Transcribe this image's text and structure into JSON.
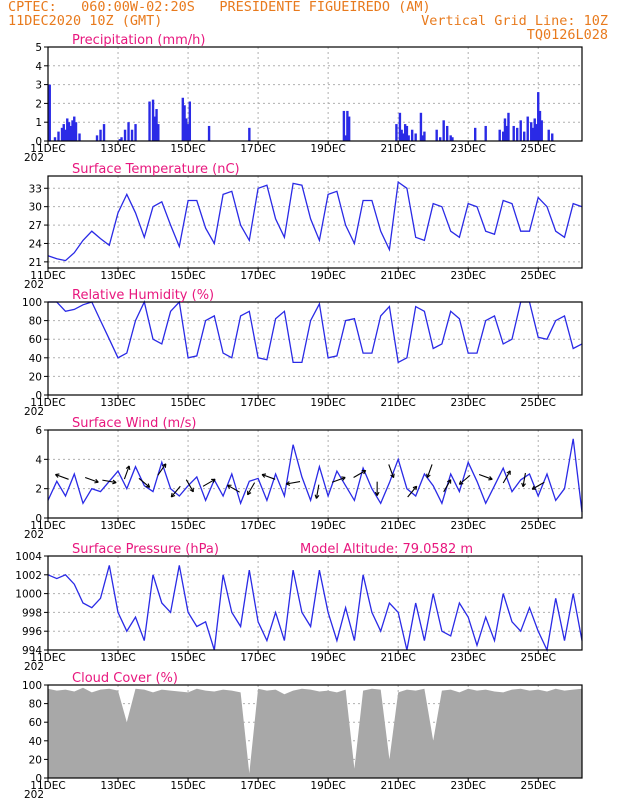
{
  "header": {
    "line1": "CPTEC:   060:00W-02:20S   PRESIDENTE FIGUEIREDO (AM)",
    "line2_left": "11DEC2020 10Z (GMT)",
    "line2_right": "Vertical Grid Line: 10Z",
    "line3_right": "TQ0126L028"
  },
  "colors": {
    "header": "#e87a1d",
    "title": "#e8177e",
    "series": "#2a2ae6",
    "cloud": "#a8a8a8",
    "grid": "#b0b0b0"
  },
  "x_axis": {
    "ticks": [
      "11DEC",
      "13DEC",
      "15DEC",
      "17DEC",
      "19DEC",
      "21DEC",
      "23DEC",
      "25DEC"
    ],
    "year_label": "202"
  },
  "chart_data": [
    {
      "type": "bar",
      "title": "Precipitation (mm/h)",
      "ylim": [
        0,
        5
      ],
      "yticks": [
        "0",
        "1",
        "2",
        "3",
        "4",
        "5"
      ],
      "x_unit": "days since 11DEC 10Z",
      "x": [
        0.05,
        0.2,
        0.3,
        0.4,
        0.45,
        0.5,
        0.55,
        0.6,
        0.65,
        0.7,
        0.75,
        0.8,
        0.9,
        1.4,
        1.5,
        1.6,
        2.05,
        2.1,
        2.2,
        2.3,
        2.4,
        2.5,
        2.9,
        3.0,
        3.05,
        3.1,
        3.15,
        3.85,
        3.9,
        3.95,
        4.0,
        4.05,
        4.6,
        5.75,
        8.45,
        8.5,
        8.55,
        8.6,
        9.95,
        10.05,
        10.1,
        10.15,
        10.2,
        10.25,
        10.3,
        10.4,
        10.5,
        10.65,
        10.7,
        10.75,
        11.1,
        11.2,
        11.3,
        11.4,
        11.5,
        11.55,
        12.2,
        12.5,
        12.9,
        13.0,
        13.05,
        13.1,
        13.15,
        13.3,
        13.4,
        13.5,
        13.6,
        13.7,
        13.8,
        13.85,
        13.9,
        13.95,
        14.0,
        14.05,
        14.1,
        14.3,
        14.4
      ],
      "values": [
        3.0,
        0.2,
        0.5,
        0.7,
        0.9,
        0.6,
        1.2,
        1.0,
        0.8,
        1.1,
        1.3,
        1.0,
        0.4,
        0.3,
        0.6,
        0.9,
        0.1,
        0.2,
        0.6,
        1.0,
        0.6,
        0.9,
        2.1,
        2.2,
        1.3,
        1.7,
        0.9,
        2.3,
        1.9,
        1.2,
        0.9,
        2.1,
        0.8,
        0.7,
        1.6,
        0.3,
        1.6,
        1.3,
        0.9,
        1.5,
        0.6,
        0.4,
        0.9,
        0.8,
        0.3,
        0.6,
        0.4,
        1.5,
        0.3,
        0.5,
        0.6,
        0.2,
        1.1,
        0.8,
        0.3,
        0.2,
        0.7,
        0.8,
        0.6,
        0.5,
        1.2,
        0.8,
        1.5,
        0.8,
        0.7,
        1.1,
        0.5,
        1.3,
        1.0,
        0.7,
        1.2,
        0.9,
        2.6,
        1.6,
        1.1,
        0.6,
        0.4
      ]
    },
    {
      "type": "line",
      "title": "Surface Temperature (nC)",
      "ylim": [
        20,
        35
      ],
      "yticks": [
        "21",
        "24",
        "27",
        "30",
        "33"
      ],
      "x_unit": "days since 11DEC 10Z",
      "x": [
        0,
        0.25,
        0.5,
        0.75,
        1.0,
        1.25,
        1.5,
        1.75,
        2.0,
        2.25,
        2.5,
        2.75,
        3.0,
        3.25,
        3.5,
        3.75,
        4.0,
        4.25,
        4.5,
        4.75,
        5.0,
        5.25,
        5.5,
        5.75,
        6.0,
        6.25,
        6.5,
        6.75,
        7.0,
        7.25,
        7.5,
        7.75,
        8.0,
        8.25,
        8.5,
        8.75,
        9.0,
        9.25,
        9.5,
        9.75,
        10.0,
        10.25,
        10.5,
        10.75,
        11.0,
        11.25,
        11.5,
        11.75,
        12.0,
        12.25,
        12.5,
        12.75,
        13.0,
        13.25,
        13.5,
        13.75,
        14.0,
        14.25,
        14.5,
        14.75,
        15.0,
        15.25
      ],
      "values": [
        22.0,
        21.5,
        21.2,
        22.5,
        24.5,
        26.0,
        24.8,
        23.7,
        29.0,
        32.0,
        29.0,
        25.0,
        30.0,
        30.8,
        27.0,
        23.5,
        31.0,
        31.0,
        26.5,
        24.0,
        32.0,
        32.5,
        27.0,
        24.5,
        33.0,
        33.5,
        28.0,
        25.0,
        33.8,
        33.5,
        28.0,
        24.5,
        32.0,
        32.5,
        27.0,
        24.0,
        31.0,
        31.0,
        26.0,
        23.0,
        34.0,
        33.0,
        25.0,
        24.5,
        30.5,
        30.0,
        26.0,
        25.0,
        30.5,
        30.0,
        26.0,
        25.5,
        31.0,
        30.5,
        26.0,
        26.0,
        31.5,
        30.0,
        26.0,
        25.0,
        30.5,
        30.0
      ]
    },
    {
      "type": "line",
      "title": "Relative Humidity (%)",
      "ylim": [
        0,
        100
      ],
      "yticks": [
        "0",
        "20",
        "40",
        "60",
        "80",
        "100"
      ],
      "x_unit": "days since 11DEC 10Z",
      "x": [
        0,
        0.25,
        0.5,
        0.75,
        1.0,
        1.25,
        1.5,
        1.75,
        2.0,
        2.25,
        2.5,
        2.75,
        3.0,
        3.25,
        3.5,
        3.75,
        4.0,
        4.25,
        4.5,
        4.75,
        5.0,
        5.25,
        5.5,
        5.75,
        6.0,
        6.25,
        6.5,
        6.75,
        7.0,
        7.25,
        7.5,
        7.75,
        8.0,
        8.25,
        8.5,
        8.75,
        9.0,
        9.25,
        9.5,
        9.75,
        10.0,
        10.25,
        10.5,
        10.75,
        11.0,
        11.25,
        11.5,
        11.75,
        12.0,
        12.25,
        12.5,
        12.75,
        13.0,
        13.25,
        13.5,
        13.75,
        14.0,
        14.25,
        14.5,
        14.75,
        15.0,
        15.25
      ],
      "values": [
        100,
        100,
        90,
        92,
        97,
        100,
        80,
        60,
        40,
        45,
        80,
        100,
        60,
        55,
        90,
        100,
        40,
        42,
        80,
        85,
        45,
        40,
        85,
        90,
        40,
        38,
        82,
        90,
        35,
        35,
        80,
        98,
        40,
        42,
        80,
        82,
        45,
        45,
        85,
        95,
        35,
        40,
        95,
        90,
        50,
        55,
        90,
        82,
        45,
        45,
        80,
        85,
        55,
        60,
        100,
        100,
        62,
        60,
        80,
        85,
        50,
        55
      ]
    },
    {
      "type": "line",
      "title": "Surface Wind (m/s)",
      "ylim": [
        0,
        6
      ],
      "yticks": [
        "0",
        "2",
        "4",
        "6"
      ],
      "x_unit": "days since 11DEC 10Z",
      "x": [
        0,
        0.25,
        0.5,
        0.75,
        1.0,
        1.25,
        1.5,
        1.75,
        2.0,
        2.25,
        2.5,
        2.75,
        3.0,
        3.25,
        3.5,
        3.75,
        4.0,
        4.25,
        4.5,
        4.75,
        5.0,
        5.25,
        5.5,
        5.75,
        6.0,
        6.25,
        6.5,
        6.75,
        7.0,
        7.25,
        7.5,
        7.75,
        8.0,
        8.25,
        8.5,
        8.75,
        9.0,
        9.25,
        9.5,
        9.75,
        10.0,
        10.25,
        10.5,
        10.75,
        11.0,
        11.25,
        11.5,
        11.75,
        12.0,
        12.25,
        12.5,
        12.75,
        13.0,
        13.25,
        13.5,
        13.75,
        14.0,
        14.25,
        14.5,
        14.75,
        15.0,
        15.25
      ],
      "values": [
        1.2,
        2.5,
        1.5,
        3.0,
        1.0,
        2.0,
        1.8,
        2.5,
        3.2,
        2.0,
        3.5,
        2.2,
        1.8,
        3.8,
        2.0,
        1.5,
        2.2,
        2.8,
        1.2,
        2.6,
        1.5,
        3.0,
        1.0,
        2.5,
        2.7,
        1.2,
        3.0,
        1.5,
        5.0,
        2.8,
        1.2,
        3.5,
        1.5,
        3.2,
        2.2,
        1.2,
        3.4,
        2.0,
        1.0,
        2.4,
        4.0,
        2.0,
        1.5,
        3.0,
        2.2,
        1.0,
        3.0,
        1.8,
        3.8,
        2.5,
        1.0,
        2.2,
        3.4,
        1.8,
        2.6,
        3.0,
        1.5,
        3.0,
        1.2,
        2.0,
        5.4,
        0.4
      ],
      "arrows": {
        "x": [
          0.4,
          1.25,
          1.75,
          2.25,
          2.75,
          3.25,
          3.65,
          4.05,
          4.6,
          5.3,
          5.8,
          6.3,
          7.0,
          7.7,
          8.3,
          8.9,
          9.4,
          9.8,
          10.4,
          10.9,
          11.4,
          11.9,
          12.5,
          13.1,
          13.6,
          14.0
        ],
        "y": [
          2.8,
          2.6,
          2.5,
          3.1,
          2.4,
          3.3,
          1.8,
          2.2,
          2.4,
          2.0,
          2.0,
          2.8,
          2.4,
          1.8,
          2.6,
          3.0,
          2.0,
          3.2,
          1.8,
          3.2,
          2.2,
          2.6,
          2.8,
          2.8,
          2.6,
          2.2
        ],
        "dir_deg": [
          160,
          -20,
          -10,
          70,
          -40,
          55,
          -130,
          -60,
          30,
          150,
          -120,
          160,
          -170,
          -100,
          20,
          30,
          -90,
          -70,
          50,
          -110,
          60,
          -140,
          -20,
          60,
          -100,
          -150
        ]
      }
    },
    {
      "type": "line",
      "title": "Surface Pressure (hPa)",
      "annotation": "Model Altitude: 79.0582 m",
      "ylim": [
        994,
        1004
      ],
      "yticks": [
        "994",
        "996",
        "998",
        "1000",
        "1002",
        "1004"
      ],
      "x_unit": "days since 11DEC 10Z",
      "x": [
        0,
        0.25,
        0.5,
        0.75,
        1.0,
        1.25,
        1.5,
        1.75,
        2.0,
        2.25,
        2.5,
        2.75,
        3.0,
        3.25,
        3.5,
        3.75,
        4.0,
        4.25,
        4.5,
        4.75,
        5.0,
        5.25,
        5.5,
        5.75,
        6.0,
        6.25,
        6.5,
        6.75,
        7.0,
        7.25,
        7.5,
        7.75,
        8.0,
        8.25,
        8.5,
        8.75,
        9.0,
        9.25,
        9.5,
        9.75,
        10.0,
        10.25,
        10.5,
        10.75,
        11.0,
        11.25,
        11.5,
        11.75,
        12.0,
        12.25,
        12.5,
        12.75,
        13.0,
        13.25,
        13.5,
        13.75,
        14.0,
        14.25,
        14.5,
        14.75,
        15.0,
        15.25
      ],
      "values": [
        1002,
        1001.6,
        1002,
        1001,
        999,
        998.5,
        999.5,
        1003,
        998,
        996,
        997.5,
        995,
        1002,
        999,
        998,
        1003,
        998,
        996.5,
        997,
        994,
        1002,
        998,
        996.5,
        1002.5,
        997,
        995,
        998,
        995,
        1002.5,
        998,
        996.5,
        1002.5,
        998,
        995,
        998.5,
        995,
        1002,
        998,
        996,
        999,
        998,
        994,
        999,
        995,
        1000,
        996,
        995.5,
        999,
        997.5,
        994.5,
        997.5,
        995,
        1000,
        997,
        996,
        998.5,
        996,
        994,
        999.5,
        995,
        1000,
        995
      ]
    },
    {
      "type": "area",
      "title": "Cloud Cover (%)",
      "ylim": [
        0,
        100
      ],
      "yticks": [
        "0",
        "20",
        "40",
        "60",
        "80",
        "100"
      ],
      "x_unit": "days since 11DEC 10Z",
      "x": [
        0,
        0.25,
        0.5,
        0.75,
        1.0,
        1.25,
        1.5,
        1.75,
        2.0,
        2.25,
        2.5,
        2.75,
        3.0,
        3.25,
        3.5,
        3.75,
        4.0,
        4.25,
        4.5,
        4.75,
        5.0,
        5.25,
        5.5,
        5.75,
        6.0,
        6.25,
        6.5,
        6.75,
        7.0,
        7.25,
        7.5,
        7.75,
        8.0,
        8.25,
        8.5,
        8.75,
        9.0,
        9.25,
        9.5,
        9.75,
        10.0,
        10.25,
        10.5,
        10.75,
        11.0,
        11.25,
        11.5,
        11.75,
        12.0,
        12.25,
        12.5,
        12.75,
        13.0,
        13.25,
        13.5,
        13.75,
        14.0,
        14.25,
        14.5,
        14.75,
        15.0,
        15.25
      ],
      "values": [
        96,
        94,
        95,
        93,
        97,
        92,
        95,
        96,
        94,
        60,
        96,
        95,
        92,
        95,
        94,
        93,
        92,
        96,
        94,
        93,
        95,
        94,
        92,
        5,
        96,
        94,
        95,
        90,
        94,
        96,
        95,
        93,
        94,
        92,
        95,
        10,
        94,
        96,
        95,
        20,
        92,
        95,
        94,
        96,
        40,
        94,
        95,
        92,
        96,
        94,
        95,
        93,
        92,
        95,
        96,
        94,
        95,
        93,
        96,
        94,
        95,
        96
      ]
    }
  ]
}
